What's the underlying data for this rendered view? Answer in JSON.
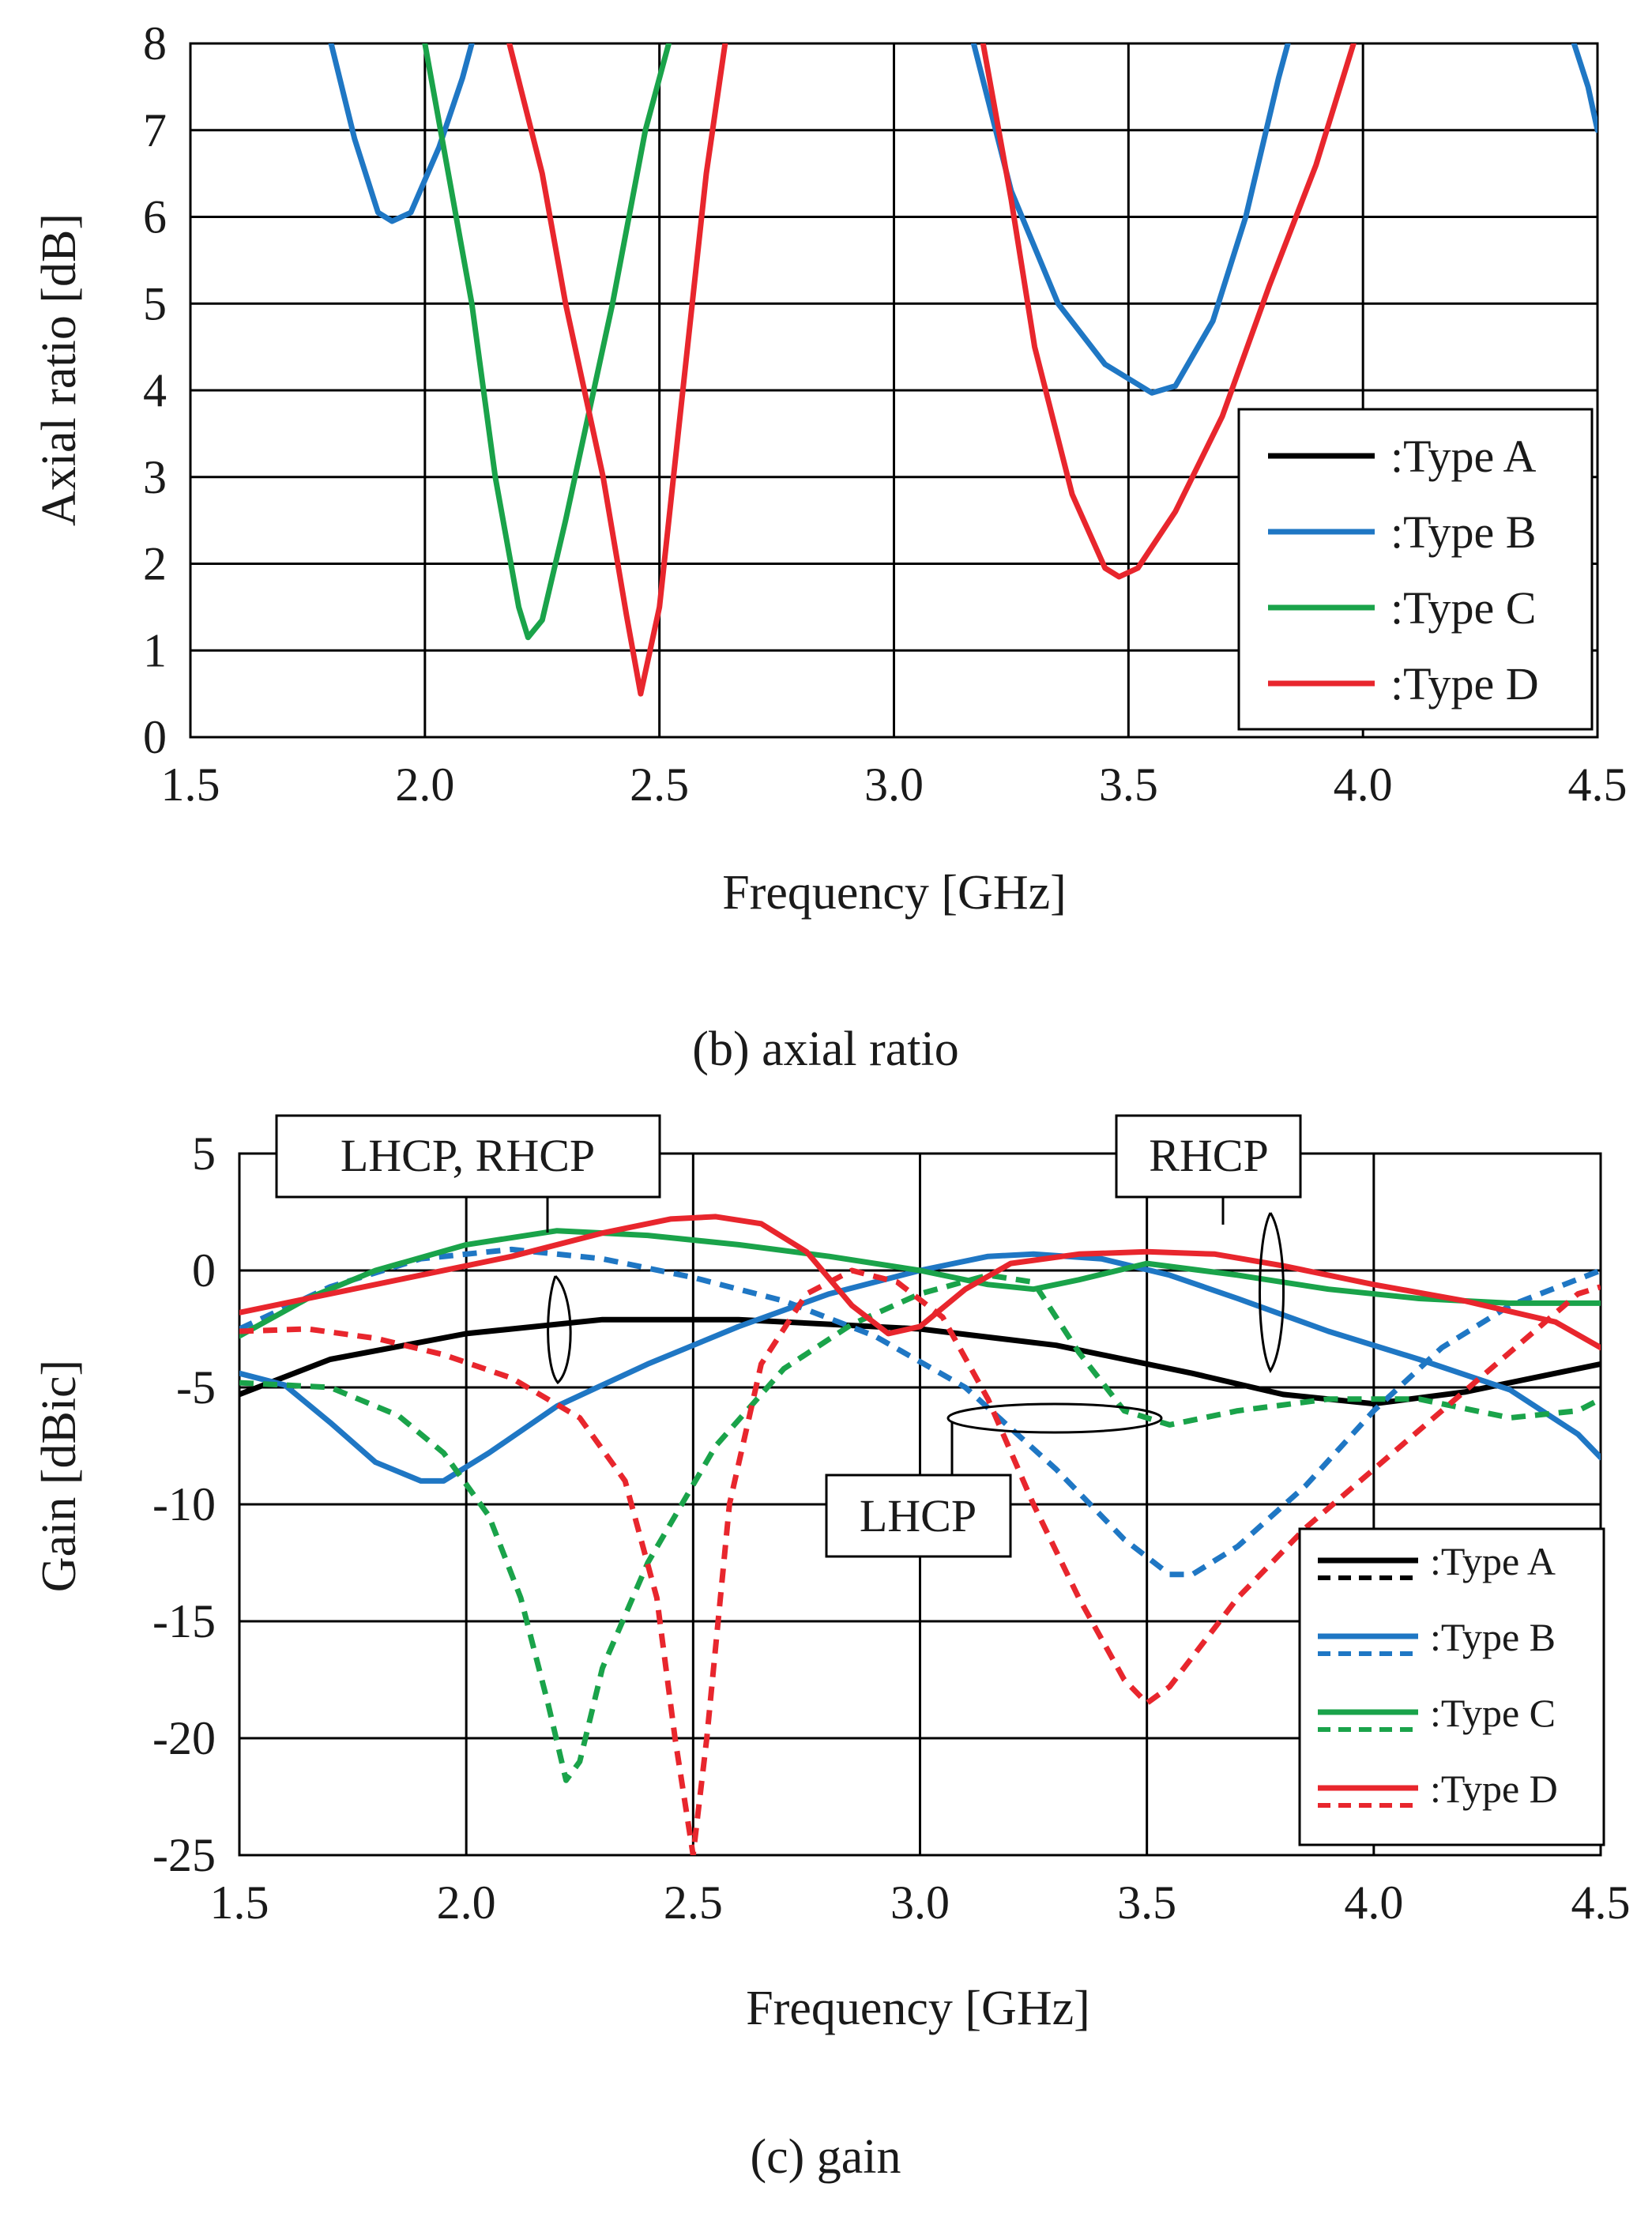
{
  "figure_b": {
    "caption": "(b) axial ratio"
  },
  "figure_c": {
    "caption": "(c) gain",
    "annotations": {
      "lhcp_rhcp": "LHCP, RHCP",
      "rhcp": "RHCP",
      "lhcp": "LHCP"
    }
  },
  "colors": {
    "type_a": "#000000",
    "type_b": "#1f77c4",
    "type_c": "#1aa34a",
    "type_d": "#e8262d",
    "grid": "#000000"
  },
  "chart_data": [
    {
      "id": "axial_ratio",
      "type": "line",
      "xlabel": "Frequency [GHz]",
      "ylabel": "Axial ratio [dB]",
      "xlim": [
        1.5,
        4.5
      ],
      "ylim": [
        0,
        8
      ],
      "xticks": [
        "1.5",
        "2.0",
        "2.5",
        "3.0",
        "3.5",
        "4.0",
        "4.5"
      ],
      "yticks": [
        "0",
        "1",
        "2",
        "3",
        "4",
        "5",
        "6",
        "7",
        "8"
      ],
      "grid": true,
      "legend_position": "bottom-right",
      "legend": [
        ":Type A",
        ":Type B",
        ":Type C",
        ":Type D"
      ],
      "series": [
        {
          "name": ":Type B",
          "color_key": "type_b",
          "dashed": false,
          "points": [
            [
              1.8,
              8.0
            ],
            [
              1.85,
              6.9
            ],
            [
              1.9,
              6.05
            ],
            [
              1.93,
              5.95
            ],
            [
              1.97,
              6.05
            ],
            [
              2.03,
              6.8
            ],
            [
              2.08,
              7.6
            ],
            [
              2.1,
              8.0
            ]
          ]
        },
        {
          "name": ":Type B",
          "color_key": "type_b",
          "dashed": false,
          "points": [
            [
              3.17,
              8.0
            ],
            [
              3.25,
              6.3
            ],
            [
              3.35,
              5.0
            ],
            [
              3.45,
              4.3
            ],
            [
              3.55,
              3.97
            ],
            [
              3.6,
              4.05
            ],
            [
              3.68,
              4.8
            ],
            [
              3.75,
              6.0
            ],
            [
              3.82,
              7.6
            ],
            [
              3.84,
              8.0
            ]
          ]
        },
        {
          "name": ":Type B",
          "color_key": "type_b",
          "dashed": false,
          "points": [
            [
              4.45,
              8.0
            ],
            [
              4.48,
              7.5
            ],
            [
              4.5,
              7.0
            ]
          ]
        },
        {
          "name": ":Type C",
          "color_key": "type_c",
          "dashed": false,
          "points": [
            [
              2.0,
              8.0
            ],
            [
              2.05,
              6.5
            ],
            [
              2.1,
              5.0
            ],
            [
              2.15,
              3.0
            ],
            [
              2.2,
              1.5
            ],
            [
              2.22,
              1.15
            ],
            [
              2.25,
              1.35
            ],
            [
              2.3,
              2.5
            ],
            [
              2.4,
              5.0
            ],
            [
              2.47,
              7.0
            ],
            [
              2.52,
              8.0
            ]
          ]
        },
        {
          "name": ":Type D",
          "color_key": "type_d",
          "dashed": false,
          "points": [
            [
              2.18,
              8.0
            ],
            [
              2.25,
              6.5
            ],
            [
              2.3,
              5.0
            ],
            [
              2.38,
              3.0
            ],
            [
              2.43,
              1.4
            ],
            [
              2.46,
              0.5
            ],
            [
              2.5,
              1.5
            ],
            [
              2.55,
              4.0
            ],
            [
              2.6,
              6.5
            ],
            [
              2.64,
              8.0
            ]
          ]
        },
        {
          "name": ":Type D",
          "color_key": "type_d",
          "dashed": false,
          "points": [
            [
              3.19,
              8.0
            ],
            [
              3.25,
              6.2
            ],
            [
              3.3,
              4.5
            ],
            [
              3.38,
              2.8
            ],
            [
              3.45,
              1.95
            ],
            [
              3.48,
              1.85
            ],
            [
              3.52,
              1.95
            ],
            [
              3.6,
              2.6
            ],
            [
              3.7,
              3.7
            ],
            [
              3.8,
              5.2
            ],
            [
              3.9,
              6.6
            ],
            [
              3.98,
              8.0
            ]
          ]
        }
      ]
    },
    {
      "id": "gain",
      "type": "line",
      "xlabel": "Frequency [GHz]",
      "ylabel": "Gain [dBic]",
      "xlim": [
        1.5,
        4.5
      ],
      "ylim": [
        -25,
        5
      ],
      "xticks": [
        "1.5",
        "2.0",
        "2.5",
        "3.0",
        "3.5",
        "4.0",
        "4.5"
      ],
      "yticks": [
        "-25",
        "-20",
        "-15",
        "-10",
        "-5",
        "0",
        "5"
      ],
      "grid": true,
      "legend_position": "bottom-right",
      "legend": [
        ":Type A",
        ":Type B",
        ":Type C",
        ":Type D"
      ],
      "series": [
        {
          "name": ":Type A",
          "color_key": "type_a",
          "dashed": false,
          "points": [
            [
              1.5,
              -5.3
            ],
            [
              1.7,
              -3.8
            ],
            [
              2.0,
              -2.7
            ],
            [
              2.3,
              -2.1
            ],
            [
              2.6,
              -2.1
            ],
            [
              3.0,
              -2.5
            ],
            [
              3.3,
              -3.2
            ],
            [
              3.6,
              -4.4
            ],
            [
              3.8,
              -5.3
            ],
            [
              4.0,
              -5.7
            ],
            [
              4.2,
              -5.2
            ],
            [
              4.4,
              -4.4
            ],
            [
              4.5,
              -4.0
            ]
          ]
        },
        {
          "name": ":Type B",
          "color_key": "type_b",
          "dashed": false,
          "points": [
            [
              1.5,
              -4.4
            ],
            [
              1.6,
              -4.9
            ],
            [
              1.7,
              -6.5
            ],
            [
              1.8,
              -8.2
            ],
            [
              1.9,
              -9.0
            ],
            [
              1.95,
              -9.0
            ],
            [
              2.05,
              -7.8
            ],
            [
              2.2,
              -5.8
            ],
            [
              2.4,
              -4.0
            ],
            [
              2.6,
              -2.4
            ],
            [
              2.8,
              -1.0
            ],
            [
              3.0,
              0.0
            ],
            [
              3.15,
              0.6
            ],
            [
              3.25,
              0.7
            ],
            [
              3.4,
              0.5
            ],
            [
              3.55,
              -0.2
            ],
            [
              3.7,
              -1.2
            ],
            [
              3.9,
              -2.6
            ],
            [
              4.1,
              -3.8
            ],
            [
              4.3,
              -5.1
            ],
            [
              4.45,
              -7.0
            ],
            [
              4.5,
              -8.0
            ]
          ]
        },
        {
          "name": ":Type B",
          "color_key": "type_b",
          "dashed": true,
          "points": [
            [
              1.5,
              -2.5
            ],
            [
              1.7,
              -0.7
            ],
            [
              1.9,
              0.5
            ],
            [
              2.1,
              0.9
            ],
            [
              2.3,
              0.5
            ],
            [
              2.5,
              -0.3
            ],
            [
              2.7,
              -1.3
            ],
            [
              2.9,
              -2.8
            ],
            [
              3.1,
              -5.0
            ],
            [
              3.3,
              -8.5
            ],
            [
              3.45,
              -11.5
            ],
            [
              3.55,
              -13.0
            ],
            [
              3.6,
              -13.0
            ],
            [
              3.7,
              -11.8
            ],
            [
              3.85,
              -9.2
            ],
            [
              4.0,
              -6.0
            ],
            [
              4.15,
              -3.3
            ],
            [
              4.3,
              -1.5
            ],
            [
              4.5,
              0.0
            ]
          ]
        },
        {
          "name": ":Type C",
          "color_key": "type_c",
          "dashed": false,
          "points": [
            [
              1.5,
              -2.8
            ],
            [
              1.65,
              -1.2
            ],
            [
              1.8,
              0.0
            ],
            [
              2.0,
              1.1
            ],
            [
              2.2,
              1.7
            ],
            [
              2.4,
              1.5
            ],
            [
              2.6,
              1.1
            ],
            [
              2.8,
              0.6
            ],
            [
              3.0,
              0.0
            ],
            [
              3.15,
              -0.6
            ],
            [
              3.25,
              -0.8
            ],
            [
              3.35,
              -0.4
            ],
            [
              3.5,
              0.3
            ],
            [
              3.7,
              -0.2
            ],
            [
              3.9,
              -0.8
            ],
            [
              4.1,
              -1.2
            ],
            [
              4.3,
              -1.4
            ],
            [
              4.5,
              -1.4
            ]
          ]
        },
        {
          "name": ":Type C",
          "color_key": "type_c",
          "dashed": true,
          "points": [
            [
              1.5,
              -4.8
            ],
            [
              1.7,
              -5.0
            ],
            [
              1.85,
              -6.2
            ],
            [
              1.95,
              -7.8
            ],
            [
              2.05,
              -10.5
            ],
            [
              2.12,
              -14.0
            ],
            [
              2.18,
              -18.5
            ],
            [
              2.22,
              -21.8
            ],
            [
              2.25,
              -21.0
            ],
            [
              2.3,
              -17.0
            ],
            [
              2.4,
              -12.5
            ],
            [
              2.55,
              -7.5
            ],
            [
              2.7,
              -4.2
            ],
            [
              2.85,
              -2.3
            ],
            [
              3.0,
              -1.0
            ],
            [
              3.15,
              -0.2
            ],
            [
              3.25,
              -0.5
            ],
            [
              3.35,
              -3.5
            ],
            [
              3.45,
              -6.0
            ],
            [
              3.55,
              -6.6
            ],
            [
              3.7,
              -6.0
            ],
            [
              3.9,
              -5.5
            ],
            [
              4.1,
              -5.5
            ],
            [
              4.3,
              -6.3
            ],
            [
              4.45,
              -6.0
            ],
            [
              4.5,
              -5.5
            ]
          ]
        },
        {
          "name": ":Type D",
          "color_key": "type_d",
          "dashed": false,
          "points": [
            [
              1.5,
              -1.8
            ],
            [
              1.7,
              -1.0
            ],
            [
              1.9,
              -0.2
            ],
            [
              2.1,
              0.6
            ],
            [
              2.3,
              1.6
            ],
            [
              2.45,
              2.2
            ],
            [
              2.55,
              2.3
            ],
            [
              2.65,
              2.0
            ],
            [
              2.75,
              0.8
            ],
            [
              2.85,
              -1.5
            ],
            [
              2.93,
              -2.7
            ],
            [
              3.0,
              -2.4
            ],
            [
              3.1,
              -0.8
            ],
            [
              3.2,
              0.3
            ],
            [
              3.35,
              0.7
            ],
            [
              3.5,
              0.8
            ],
            [
              3.65,
              0.7
            ],
            [
              3.8,
              0.2
            ],
            [
              4.0,
              -0.6
            ],
            [
              4.2,
              -1.3
            ],
            [
              4.4,
              -2.2
            ],
            [
              4.5,
              -3.3
            ]
          ]
        },
        {
          "name": ":Type D",
          "color_key": "type_d",
          "dashed": true,
          "points": [
            [
              1.5,
              -2.6
            ],
            [
              1.65,
              -2.5
            ],
            [
              1.8,
              -2.9
            ],
            [
              1.95,
              -3.6
            ],
            [
              2.1,
              -4.6
            ],
            [
              2.25,
              -6.3
            ],
            [
              2.35,
              -9.0
            ],
            [
              2.42,
              -14.0
            ],
            [
              2.46,
              -20.0
            ],
            [
              2.5,
              -25.0
            ],
            [
              2.53,
              -20.0
            ],
            [
              2.58,
              -10.0
            ],
            [
              2.65,
              -4.0
            ],
            [
              2.75,
              -1.0
            ],
            [
              2.85,
              0.0
            ],
            [
              2.95,
              -0.5
            ],
            [
              3.05,
              -2.0
            ],
            [
              3.15,
              -5.5
            ],
            [
              3.25,
              -10.0
            ],
            [
              3.35,
              -14.0
            ],
            [
              3.45,
              -17.5
            ],
            [
              3.5,
              -18.5
            ],
            [
              3.55,
              -17.8
            ],
            [
              3.7,
              -14.0
            ],
            [
              3.85,
              -11.0
            ],
            [
              4.0,
              -8.5
            ],
            [
              4.15,
              -6.0
            ],
            [
              4.3,
              -3.5
            ],
            [
              4.45,
              -1.0
            ],
            [
              4.5,
              -0.7
            ]
          ]
        }
      ]
    }
  ]
}
